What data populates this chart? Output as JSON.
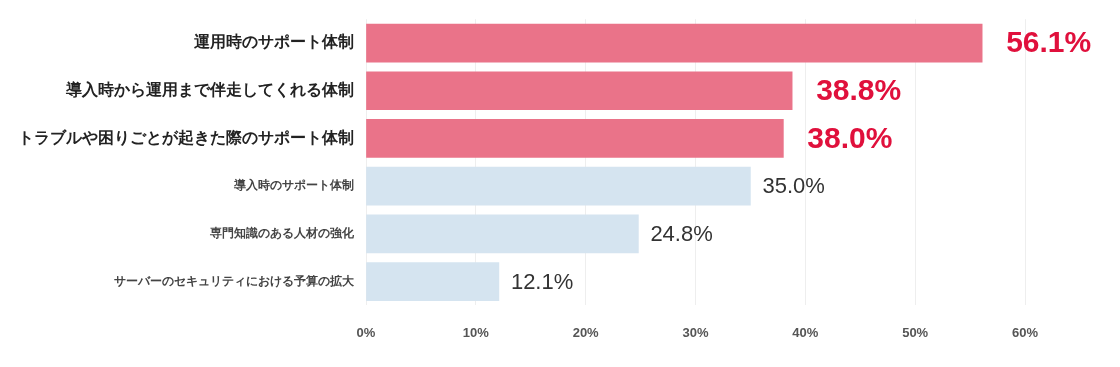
{
  "chart_data": {
    "type": "bar",
    "orientation": "horizontal",
    "categories": [
      "運用時のサポート体制",
      "導入時から運用まで伴走してくれる体制",
      "トラブルや困りごとが起きた際のサポート体制",
      "導入時のサポート体制",
      "専門知識のある人材の強化",
      "サーバーのセキュリティにおける予算の拡大"
    ],
    "values": [
      56.1,
      38.8,
      38.0,
      35.0,
      24.8,
      12.1
    ],
    "value_labels": [
      "56.1%",
      "38.8%",
      "38.0%",
      "35.0%",
      "24.8%",
      "12.1%"
    ],
    "colors": [
      "#ea7389",
      "#ea7389",
      "#ea7389",
      "#d5e4f0",
      "#d5e4f0",
      "#d5e4f0"
    ],
    "xlim": [
      0,
      60
    ],
    "xticks": [
      {
        "value": 0,
        "label": "0%"
      },
      {
        "value": 10,
        "label": "10%"
      },
      {
        "value": 20,
        "label": "20%"
      },
      {
        "value": 30,
        "label": "30%"
      },
      {
        "value": 40,
        "label": "40%"
      },
      {
        "value": 50,
        "label": "50%"
      },
      {
        "value": 60,
        "label": "60%"
      }
    ],
    "grid": "x",
    "legend": false
  }
}
